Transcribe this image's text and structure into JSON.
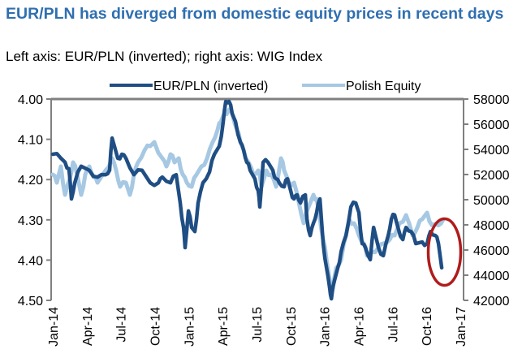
{
  "chart_data": {
    "type": "line",
    "title": "EUR/PLN has diverged from domestic equity prices in recent days",
    "subtitle": "Left axis: EUR/PLN (inverted); right axis: WIG Index",
    "x_unit": "months since Jan-14",
    "x_ticks": [
      "Jan-14",
      "Apr-14",
      "Jul-14",
      "Oct-14",
      "Jan-15",
      "Apr-15",
      "Jul-15",
      "Oct-15",
      "Jan-16",
      "Apr-16",
      "Jul-16",
      "Oct-16",
      "Jan-17"
    ],
    "xlim": [
      0,
      36
    ],
    "left_axis": {
      "label": "EUR/PLN (inverted)",
      "ylim": [
        4.5,
        4.0
      ],
      "inverted": true,
      "ticks": [
        "4.00",
        "4.10",
        "4.20",
        "4.30",
        "4.40",
        "4.50"
      ]
    },
    "right_axis": {
      "label": "WIG Index",
      "ylim": [
        42000,
        58000
      ],
      "ticks": [
        "58000",
        "56000",
        "54000",
        "52000",
        "50000",
        "48000",
        "46000",
        "44000",
        "42000"
      ]
    },
    "grid": false,
    "legend_position": "top",
    "series": [
      {
        "name": "EUR/PLN (inverted)",
        "axis": "left",
        "color": "#1f4e84",
        "x": [
          0,
          0.72,
          1.08,
          1.43,
          1.65,
          1.94,
          2.51,
          3.23,
          3.95,
          4.66,
          5.02,
          5.24,
          5.74,
          6.1,
          6.46,
          7.17,
          7.89,
          8.61,
          9.33,
          9.68,
          10.4,
          10.9,
          11.26,
          11.55,
          11.69,
          11.98,
          12.27,
          12.55,
          12.84,
          13.27,
          13.85,
          14.28,
          14.71,
          15.06,
          15.28,
          15.57,
          15.85,
          16.14,
          16.57,
          16.86,
          17.14,
          17.43,
          17.86,
          18.15,
          18.29,
          18.58,
          19.01,
          19.44,
          19.73,
          20.01,
          20.44,
          20.73,
          21.02,
          21.31,
          21.59,
          21.88,
          22.31,
          22.45,
          22.74,
          23.03,
          23.31,
          23.6,
          23.89,
          24.18,
          24.46,
          24.61,
          24.89,
          25.18,
          25.47,
          25.9,
          26.33,
          26.76,
          27.04,
          27.33,
          27.62,
          28.05,
          28.34,
          28.77,
          29.2,
          29.63,
          29.91,
          30.2,
          30.49,
          30.92,
          31.21,
          31.64,
          32.07,
          32.64,
          33.07,
          33.36,
          33.79,
          34.07,
          34.36
        ],
        "values": [
          4.137,
          4.147,
          4.157,
          4.173,
          4.248,
          4.208,
          4.167,
          4.177,
          4.194,
          4.188,
          4.177,
          4.097,
          4.147,
          4.137,
          4.147,
          4.188,
          4.177,
          4.208,
          4.208,
          4.194,
          4.208,
          4.188,
          4.258,
          4.319,
          4.369,
          4.278,
          4.319,
          4.329,
          4.258,
          4.208,
          4.181,
          4.137,
          4.117,
          4.056,
          4.006,
          4.006,
          4.036,
          4.056,
          4.107,
          4.127,
          4.157,
          4.177,
          4.198,
          4.228,
          4.268,
          4.157,
          4.157,
          4.177,
          4.198,
          4.208,
          4.218,
          4.198,
          4.228,
          4.248,
          4.238,
          4.258,
          4.238,
          4.298,
          4.339,
          4.308,
          4.282,
          4.248,
          4.359,
          4.419,
          4.47,
          4.496,
          4.45,
          4.419,
          4.379,
          4.339,
          4.268,
          4.258,
          4.282,
          4.359,
          4.369,
          4.399,
          4.319,
          4.369,
          4.389,
          4.339,
          4.298,
          4.288,
          4.319,
          4.349,
          4.319,
          4.329,
          4.359,
          4.355,
          4.359,
          4.329,
          4.339,
          4.359,
          4.419
        ]
      },
      {
        "name": "Polish Equity",
        "axis": "right",
        "color": "#a6c8e3",
        "x": [
          0,
          0.36,
          0.72,
          1.08,
          1.51,
          1.79,
          2.15,
          2.51,
          2.87,
          3.23,
          3.59,
          3.95,
          4.66,
          5.24,
          5.6,
          5.95,
          6.46,
          6.81,
          7.17,
          7.53,
          8.11,
          8.61,
          8.97,
          9.68,
          10.04,
          10.4,
          10.76,
          11.12,
          11.48,
          11.84,
          12.27,
          12.7,
          13.13,
          13.63,
          14.13,
          14.56,
          14.85,
          15.14,
          15.57,
          15.85,
          16.28,
          16.57,
          16.86,
          17.29,
          17.72,
          18.15,
          18.44,
          18.87,
          19.3,
          19.73,
          20.16,
          20.44,
          20.88,
          21.31,
          21.74,
          22.17,
          22.6,
          23.03,
          23.31,
          23.6,
          23.89,
          24.18,
          24.46,
          24.75,
          25.04,
          25.47,
          25.9,
          26.18,
          26.61,
          27.04,
          27.48,
          27.76,
          28.19,
          28.77,
          29.2,
          29.77,
          30.2,
          30.63,
          31.21,
          31.78,
          32.21,
          32.64,
          33.07,
          33.5,
          34.07,
          34.51
        ],
        "values": [
          52000,
          51355,
          52645,
          50387,
          51677,
          52968,
          52000,
          50387,
          52000,
          52645,
          51806,
          51355,
          52323,
          53290,
          52323,
          51032,
          51355,
          50387,
          52000,
          52968,
          53935,
          54258,
          54581,
          53290,
          52645,
          53613,
          52968,
          53290,
          52000,
          51355,
          51032,
          52000,
          52645,
          53290,
          54581,
          55548,
          56194,
          56839,
          57161,
          56839,
          55548,
          54581,
          53935,
          52968,
          52000,
          52323,
          51032,
          52323,
          52000,
          51032,
          53290,
          52323,
          51355,
          51355,
          49742,
          48129,
          49419,
          50387,
          50065,
          48452,
          46839,
          45226,
          43613,
          42968,
          44581,
          45226,
          47161,
          48452,
          48129,
          47161,
          46516,
          45548,
          45871,
          46194,
          46516,
          46839,
          47161,
          48129,
          48774,
          47161,
          47806,
          48452,
          48968,
          47968,
          47968,
          48452
        ]
      }
    ],
    "annotations": [
      {
        "type": "ellipse",
        "color": "#b01c1c",
        "x_center": 34.6,
        "y_center_left": 4.38,
        "description_none": ""
      }
    ]
  }
}
